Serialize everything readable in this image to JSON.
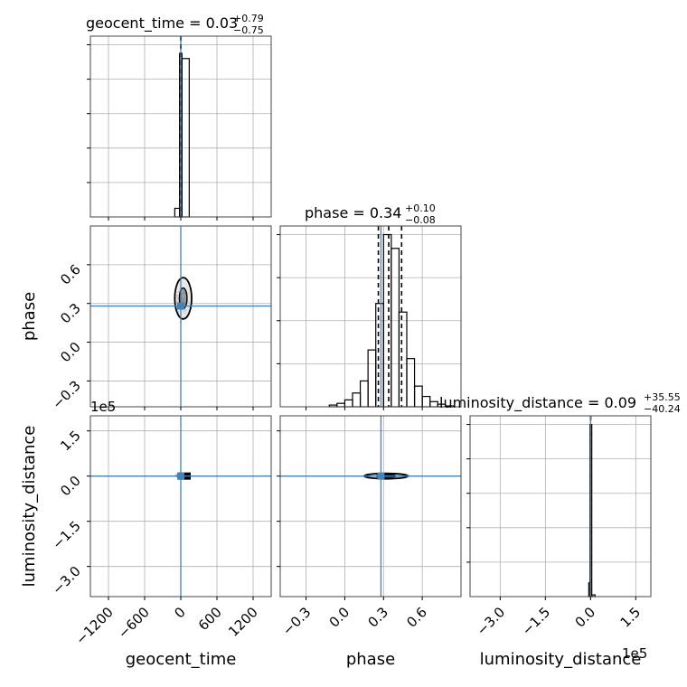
{
  "figure": {
    "background": "#ffffff"
  },
  "colors": {
    "truth": "#4682b4",
    "hist": "#000000",
    "grid": "#b0b0b0",
    "samples": "#999999"
  },
  "chart_data": [
    {
      "type": "bar",
      "panel": "hist-geocent_time",
      "title_param": "geocent_time",
      "title_value": "0.03",
      "title_plus": "+0.79",
      "title_minus": "−0.75",
      "xlim": [
        -1500,
        1500
      ],
      "bins": [
        [
          -100,
          -20,
          0.05
        ],
        [
          -20,
          20,
          0.95
        ],
        [
          20,
          140,
          0.92
        ]
      ],
      "quantiles": [
        -0.72,
        0.03,
        0.82
      ],
      "truth": 0,
      "grid": true
    },
    {
      "type": "bar",
      "panel": "hist-phase",
      "title_param": "phase",
      "title_value": "0.34",
      "title_plus": "+0.10",
      "title_minus": "−0.08",
      "xlim": [
        -0.5,
        0.9
      ],
      "bins": [
        [
          -0.12,
          -0.06,
          0.01
        ],
        [
          -0.06,
          0.0,
          0.02
        ],
        [
          0.0,
          0.06,
          0.04
        ],
        [
          0.06,
          0.12,
          0.08
        ],
        [
          0.12,
          0.18,
          0.15
        ],
        [
          0.18,
          0.24,
          0.33
        ],
        [
          0.24,
          0.3,
          0.6
        ],
        [
          0.3,
          0.36,
          1.0
        ],
        [
          0.36,
          0.42,
          0.92
        ],
        [
          0.42,
          0.48,
          0.55
        ],
        [
          0.48,
          0.54,
          0.28
        ],
        [
          0.54,
          0.6,
          0.12
        ],
        [
          0.6,
          0.66,
          0.06
        ],
        [
          0.66,
          0.72,
          0.03
        ],
        [
          0.72,
          0.78,
          0.015
        ],
        [
          0.78,
          0.84,
          0.005
        ]
      ],
      "quantiles": [
        0.26,
        0.34,
        0.44
      ],
      "truth": 0.28,
      "grid": true
    },
    {
      "type": "bar",
      "panel": "hist-luminosity_distance",
      "title_param": "luminosity_distance",
      "title_value": "0.09",
      "title_plus": "+35.55",
      "title_minus": "−40.24",
      "xlim": [
        -400000,
        200000
      ],
      "bins": [
        [
          -6000,
          0,
          0.08
        ],
        [
          -2000,
          4000,
          1.0
        ],
        [
          4000,
          15000,
          0.01
        ]
      ],
      "quantiles": [
        -40.15,
        0.09,
        35.64
      ],
      "truth": 0,
      "grid": true
    },
    {
      "type": "scatter",
      "panel": "2d-geocent_time-phase",
      "xlim": [
        -1500,
        1500
      ],
      "ylim": [
        -0.5,
        0.9
      ],
      "xticks": [
        -1200,
        -600,
        0,
        600,
        1200
      ],
      "yticks": [
        -0.3,
        0.0,
        0.3,
        0.6
      ],
      "ytick_labels": [
        "−0.3",
        "0.0",
        "0.3",
        "0.6"
      ],
      "truth_x": 0,
      "truth_y": 0.28,
      "contour": {
        "cx": 40,
        "cy": 0.34,
        "rx": 140,
        "ry": 0.16
      },
      "grid": true
    },
    {
      "type": "scatter",
      "panel": "2d-geocent_time-luminosity_distance",
      "xlim": [
        -1500,
        1500
      ],
      "ylim": [
        -400000,
        200000
      ],
      "xticks": [
        -1200,
        -600,
        0,
        600,
        1200
      ],
      "xtick_labels": [
        "−1200",
        "−600",
        "0",
        "600",
        "1200"
      ],
      "yticks": [
        -300000,
        -150000,
        0,
        150000
      ],
      "ytick_labels": [
        "−3.0",
        "−1.5",
        "0.0",
        "1.5"
      ],
      "offset_text": "1e5",
      "truth_x": 0,
      "truth_y": 0,
      "grid": true
    },
    {
      "type": "scatter",
      "panel": "2d-phase-luminosity_distance",
      "xlim": [
        -0.5,
        0.9
      ],
      "ylim": [
        -400000,
        200000
      ],
      "xticks": [
        -0.3,
        0.0,
        0.3,
        0.6
      ],
      "xtick_labels": [
        "−0.3",
        "0.0",
        "0.3",
        "0.6"
      ],
      "yticks": [
        -300000,
        -150000,
        0,
        150000
      ],
      "truth_x": 0.28,
      "truth_y": 0,
      "contour": {
        "cx": 0.32,
        "cy": 0,
        "rx": 0.17,
        "ry": 9000
      },
      "grid": true
    },
    {
      "type": "bar",
      "panel": "xaxis-luminosity_distance",
      "xticks": [
        -300000,
        -150000,
        0,
        150000
      ],
      "xtick_labels": [
        "−3.0",
        "−1.5",
        "0.0",
        "1.5"
      ],
      "offset_text": "1e5"
    }
  ],
  "labels": {
    "x_geocent_time": "geocent_time",
    "x_phase": "phase",
    "x_luminosity_distance": "luminosity_distance",
    "y_phase": "phase",
    "y_luminosity_distance": "luminosity_distance"
  }
}
